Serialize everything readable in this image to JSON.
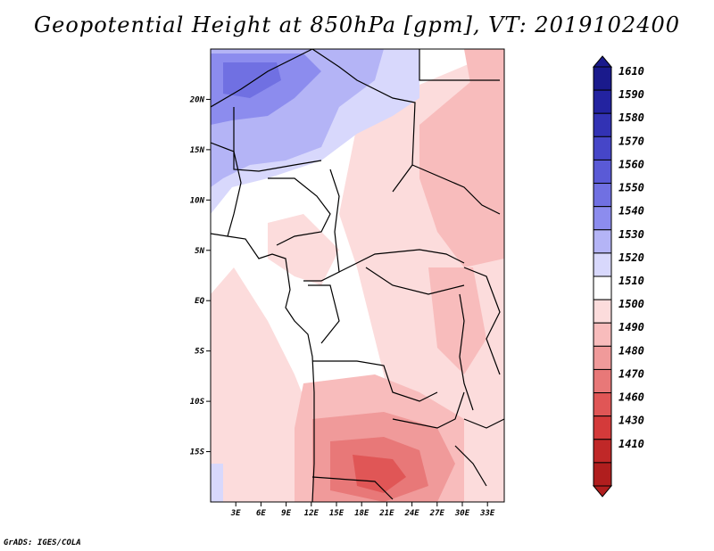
{
  "title": "Geopotential Height at 850hPa [gpm], VT: 2019102400",
  "credit": "GrADS: IGES/COLA",
  "map": {
    "lon_range": [
      0,
      35
    ],
    "lat_range": [
      -20,
      25
    ],
    "lat_ticks": [
      {
        "label": "20N",
        "value": 20
      },
      {
        "label": "15N",
        "value": 15
      },
      {
        "label": "10N",
        "value": 10
      },
      {
        "label": "5N",
        "value": 5
      },
      {
        "label": "EQ",
        "value": 0
      },
      {
        "label": "5S",
        "value": -5
      },
      {
        "label": "10S",
        "value": -10
      },
      {
        "label": "15S",
        "value": -15
      }
    ],
    "lon_ticks": [
      {
        "label": "3E",
        "value": 3
      },
      {
        "label": "6E",
        "value": 6
      },
      {
        "label": "9E",
        "value": 9
      },
      {
        "label": "12E",
        "value": 12
      },
      {
        "label": "15E",
        "value": 15
      },
      {
        "label": "18E",
        "value": 18
      },
      {
        "label": "21E",
        "value": 21
      },
      {
        "label": "24E",
        "value": 24
      },
      {
        "label": "27E",
        "value": 27
      },
      {
        "label": "30E",
        "value": 30
      },
      {
        "label": "33E",
        "value": 33
      }
    ]
  },
  "colorbar": {
    "levels": [
      {
        "label": "1610",
        "color": "#1a1a8c"
      },
      {
        "label": "1590",
        "color": "#2323a0"
      },
      {
        "label": "1580",
        "color": "#3232b4"
      },
      {
        "label": "1570",
        "color": "#4646c8"
      },
      {
        "label": "1560",
        "color": "#5a5ad6"
      },
      {
        "label": "1550",
        "color": "#7070e2"
      },
      {
        "label": "1540",
        "color": "#8c8cee"
      },
      {
        "label": "1530",
        "color": "#b4b4f6"
      },
      {
        "label": "1520",
        "color": "#d8d8fc"
      },
      {
        "label": "1510",
        "color": "#ffffff"
      },
      {
        "label": "1500",
        "color": "#fcdcdc"
      },
      {
        "label": "1490",
        "color": "#f8bcbc"
      },
      {
        "label": "1480",
        "color": "#f09a9a"
      },
      {
        "label": "1470",
        "color": "#e87878"
      },
      {
        "label": "1460",
        "color": "#e05656"
      },
      {
        "label": "1430",
        "color": "#d43a3a"
      },
      {
        "label": "1410",
        "color": "#c02828"
      }
    ],
    "bottom_color": "#b01e1e"
  }
}
